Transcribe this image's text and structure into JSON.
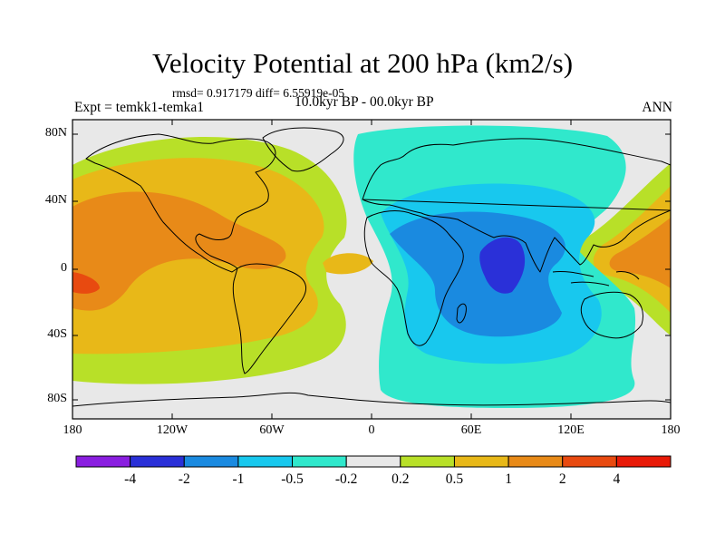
{
  "title": "Velocity Potential at 200 hPa (km2/s)",
  "stats_text": "rmsd= 0.917179 diff= 6.55919e-05",
  "experiment": "Expt = temkk1-temka1",
  "period": "10.0kyr BP - 00.0kyr BP",
  "season": "ANN",
  "y_ticks": [
    "80N",
    "40N",
    "0",
    "40S",
    "80S"
  ],
  "x_ticks": [
    "180",
    "120W",
    "60W",
    "0",
    "60E",
    "120E",
    "180"
  ],
  "colorbar": {
    "labels": [
      "-4",
      "-2",
      "-1",
      "-0.5",
      "-0.2",
      "0.2",
      "0.5",
      "1",
      "2",
      "4"
    ],
    "colors": [
      "#8a1ee0",
      "#2a30d8",
      "#1a8ae0",
      "#18c8ee",
      "#30e8cc",
      "#e8e8e8",
      "#b8e028",
      "#e8b818",
      "#e88a18",
      "#e84a10",
      "#e81a08"
    ]
  },
  "colors": {
    "map_bg": "#e8e8e8",
    "coast": "#000000"
  }
}
